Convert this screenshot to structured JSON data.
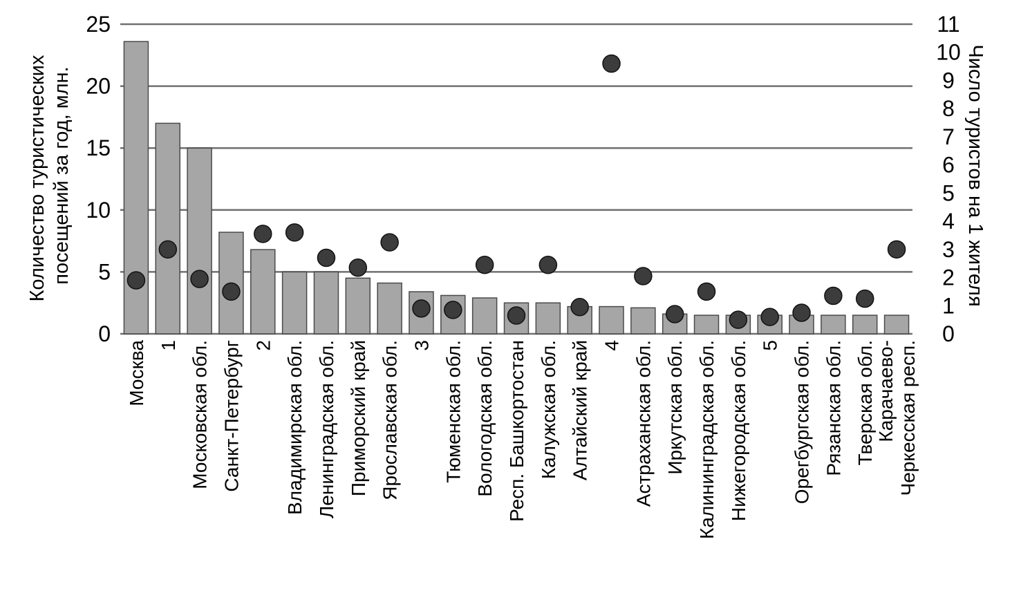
{
  "chart_data": {
    "type": "bar",
    "categories": [
      "Москва",
      "1",
      "Московская обл.",
      "Санкт-Петербург",
      "2",
      "Владимирская обл.",
      "Ленинградская обл.",
      "Приморский край",
      "Ярославская обл.",
      "3",
      "Тюменская обл.",
      "Вологодская обл.",
      "Респ. Башкортостан",
      "Калужская обл.",
      "Алтайский край",
      "4",
      "Астраханская обл.",
      "Иркутская обл.",
      "Калининградская обл.",
      "Нижегородская обл.",
      "5",
      "Орегбургская обл.",
      "Рязанская обл.",
      "Тверская обл.",
      "Карачаево-Черкесская респ."
    ],
    "category_lines": [
      [
        "Москва"
      ],
      [
        "1"
      ],
      [
        "Московская обл."
      ],
      [
        "Санкт-Петербург"
      ],
      [
        "2"
      ],
      [
        "Владимирская обл."
      ],
      [
        "Ленинградская обл."
      ],
      [
        "Приморский край"
      ],
      [
        "Ярославская обл."
      ],
      [
        "3"
      ],
      [
        "Тюменская обл."
      ],
      [
        "Вологодская обл."
      ],
      [
        "Респ. Башкортостан"
      ],
      [
        "Калужская обл."
      ],
      [
        "Алтайский край"
      ],
      [
        "4"
      ],
      [
        "Астраханская обл."
      ],
      [
        "Иркутская обл."
      ],
      [
        "Калининградская обл."
      ],
      [
        "Нижегородская обл."
      ],
      [
        "5"
      ],
      [
        "Орегбургская обл."
      ],
      [
        "Рязанская обл."
      ],
      [
        "Тверская обл."
      ],
      [
        "Карачаево-",
        "Черкесская респ."
      ]
    ],
    "series": [
      {
        "type": "bar",
        "axis": "left",
        "color": "#a6a6a6",
        "values": [
          23.6,
          17.0,
          15.0,
          8.2,
          6.8,
          5.0,
          5.0,
          4.5,
          4.1,
          3.4,
          3.1,
          2.9,
          2.5,
          2.5,
          2.2,
          2.2,
          2.1,
          1.6,
          1.5,
          1.5,
          1.5,
          1.5,
          1.5,
          1.5,
          1.5
        ]
      },
      {
        "type": "scatter",
        "axis": "right",
        "color": "#3c3c3c",
        "values": [
          1.9,
          3.0,
          1.95,
          1.5,
          3.55,
          3.6,
          2.7,
          2.35,
          3.25,
          0.9,
          0.85,
          2.45,
          0.65,
          2.45,
          0.95,
          9.6,
          2.05,
          0.7,
          1.5,
          0.5,
          0.6,
          0.75,
          1.35,
          1.25,
          3.0
        ]
      }
    ],
    "y_left": {
      "label_lines": [
        "Количество туристических",
        "посещений за год, млн."
      ],
      "ylim": [
        0,
        25
      ],
      "ticks": [
        0,
        5,
        10,
        15,
        20,
        25
      ]
    },
    "y_right": {
      "label": "Число туристов на 1 жителя",
      "ylim": [
        0,
        11
      ],
      "ticks": [
        0,
        1,
        2,
        3,
        4,
        5,
        6,
        7,
        8,
        9,
        10,
        11
      ]
    },
    "grid": true,
    "legend": "none"
  },
  "colors": {
    "bar_fill": "#a6a6a6",
    "bar_stroke": "#4a4a4a",
    "dot_fill": "#3c3c3c",
    "gridline": "#707070"
  }
}
